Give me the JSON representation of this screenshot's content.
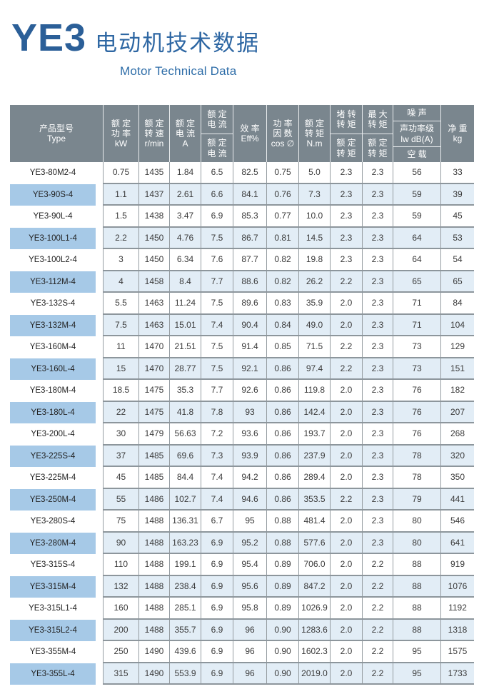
{
  "page": {
    "title_model": "YE3",
    "title_zh": "电动机技术数据",
    "subtitle_en": "Motor Technical Data"
  },
  "colors": {
    "title_blue": "#2b5f98",
    "header_bg": "#7a868e",
    "highlight_row_bg": "#e2edf6",
    "highlight_type_cell_bg": "#a6c9e7",
    "row_border": "#8d969c"
  },
  "table": {
    "header": {
      "type": "产品型号\nType",
      "rated_power": "额 定\n功 率\nkW",
      "rated_speed": "额 定\n转 速\nr/min",
      "rated_current": "额 定\n电 流\nA",
      "current_ratio_top": "额 定\n电 流",
      "current_ratio_bottom": "额 定\n电 流",
      "efficiency": "效 率\nEff%",
      "power_factor": "功 率\n因 数\ncos ∅",
      "rated_torque": "额 定\n转 矩\nN.m",
      "locked_torque_top": "堵 转\n转 矩",
      "locked_torque_bottom": "额 定\n转 矩",
      "max_torque_top": "最 大\n转 矩",
      "max_torque_bottom": "额 定\n转 矩",
      "noise_top": "噪 声",
      "noise_mid": "声功率级\nlw dB(A)",
      "noise_bottom": "空 载",
      "net_weight": "净 重\nkg"
    },
    "value_keys": [
      "rated-power-kw",
      "rated-speed-rmin",
      "rated-current-a",
      "current-ratio",
      "efficiency",
      "power-factor",
      "rated-torque-nm",
      "locked-torque-ratio",
      "max-torque-ratio",
      "noise-db",
      "net-weight-kg"
    ],
    "rows": [
      {
        "type": "YE3-80M2-4",
        "values": [
          "0.75",
          "1435",
          "1.84",
          "6.5",
          "82.5",
          "0.75",
          "5.0",
          "2.3",
          "2.3",
          "56",
          "33"
        ]
      },
      {
        "type": "YE3-90S-4",
        "values": [
          "1.1",
          "1437",
          "2.61",
          "6.6",
          "84.1",
          "0.76",
          "7.3",
          "2.3",
          "2.3",
          "59",
          "39"
        ]
      },
      {
        "type": "YE3-90L-4",
        "values": [
          "1.5",
          "1438",
          "3.47",
          "6.9",
          "85.3",
          "0.77",
          "10.0",
          "2.3",
          "2.3",
          "59",
          "45"
        ]
      },
      {
        "type": "YE3-100L1-4",
        "values": [
          "2.2",
          "1450",
          "4.76",
          "7.5",
          "86.7",
          "0.81",
          "14.5",
          "2.3",
          "2.3",
          "64",
          "53"
        ]
      },
      {
        "type": "YE3-100L2-4",
        "values": [
          "3",
          "1450",
          "6.34",
          "7.6",
          "87.7",
          "0.82",
          "19.8",
          "2.3",
          "2.3",
          "64",
          "54"
        ]
      },
      {
        "type": "YE3-112M-4",
        "values": [
          "4",
          "1458",
          "8.4",
          "7.7",
          "88.6",
          "0.82",
          "26.2",
          "2.2",
          "2.3",
          "65",
          "65"
        ]
      },
      {
        "type": "YE3-132S-4",
        "values": [
          "5.5",
          "1463",
          "11.24",
          "7.5",
          "89.6",
          "0.83",
          "35.9",
          "2.0",
          "2.3",
          "71",
          "84"
        ]
      },
      {
        "type": "YE3-132M-4",
        "values": [
          "7.5",
          "1463",
          "15.01",
          "7.4",
          "90.4",
          "0.84",
          "49.0",
          "2.0",
          "2.3",
          "71",
          "104"
        ]
      },
      {
        "type": "YE3-160M-4",
        "values": [
          "11",
          "1470",
          "21.51",
          "7.5",
          "91.4",
          "0.85",
          "71.5",
          "2.2",
          "2.3",
          "73",
          "129"
        ]
      },
      {
        "type": "YE3-160L-4",
        "values": [
          "15",
          "1470",
          "28.77",
          "7.5",
          "92.1",
          "0.86",
          "97.4",
          "2.2",
          "2.3",
          "73",
          "151"
        ]
      },
      {
        "type": "YE3-180M-4",
        "values": [
          "18.5",
          "1475",
          "35.3",
          "7.7",
          "92.6",
          "0.86",
          "119.8",
          "2.0",
          "2.3",
          "76",
          "182"
        ]
      },
      {
        "type": "YE3-180L-4",
        "values": [
          "22",
          "1475",
          "41.8",
          "7.8",
          "93",
          "0.86",
          "142.4",
          "2.0",
          "2.3",
          "76",
          "207"
        ]
      },
      {
        "type": "YE3-200L-4",
        "values": [
          "30",
          "1479",
          "56.63",
          "7.2",
          "93.6",
          "0.86",
          "193.7",
          "2.0",
          "2.3",
          "76",
          "268"
        ]
      },
      {
        "type": "YE3-225S-4",
        "values": [
          "37",
          "1485",
          "69.6",
          "7.3",
          "93.9",
          "0.86",
          "237.9",
          "2.0",
          "2.3",
          "78",
          "320"
        ]
      },
      {
        "type": "YE3-225M-4",
        "values": [
          "45",
          "1485",
          "84.4",
          "7.4",
          "94.2",
          "0.86",
          "289.4",
          "2.0",
          "2.3",
          "78",
          "350"
        ]
      },
      {
        "type": "YE3-250M-4",
        "values": [
          "55",
          "1486",
          "102.7",
          "7.4",
          "94.6",
          "0.86",
          "353.5",
          "2.2",
          "2.3",
          "79",
          "441"
        ]
      },
      {
        "type": "YE3-280S-4",
        "values": [
          "75",
          "1488",
          "136.31",
          "6.7",
          "95",
          "0.88",
          "481.4",
          "2.0",
          "2.3",
          "80",
          "546"
        ]
      },
      {
        "type": "YE3-280M-4",
        "values": [
          "90",
          "1488",
          "163.23",
          "6.9",
          "95.2",
          "0.88",
          "577.6",
          "2.0",
          "2.3",
          "80",
          "641"
        ]
      },
      {
        "type": "YE3-315S-4",
        "values": [
          "110",
          "1488",
          "199.1",
          "6.9",
          "95.4",
          "0.89",
          "706.0",
          "2.0",
          "2.2",
          "88",
          "919"
        ]
      },
      {
        "type": "YE3-315M-4",
        "values": [
          "132",
          "1488",
          "238.4",
          "6.9",
          "95.6",
          "0.89",
          "847.2",
          "2.0",
          "2.2",
          "88",
          "1076"
        ]
      },
      {
        "type": "YE3-315L1-4",
        "values": [
          "160",
          "1488",
          "285.1",
          "6.9",
          "95.8",
          "0.89",
          "1026.9",
          "2.0",
          "2.2",
          "88",
          "1192"
        ]
      },
      {
        "type": "YE3-315L2-4",
        "values": [
          "200",
          "1488",
          "355.7",
          "6.9",
          "96",
          "0.90",
          "1283.6",
          "2.0",
          "2.2",
          "88",
          "1318"
        ]
      },
      {
        "type": "YE3-355M-4",
        "values": [
          "250",
          "1490",
          "439.6",
          "6.9",
          "96",
          "0.90",
          "1602.3",
          "2.0",
          "2.2",
          "95",
          "1575"
        ]
      },
      {
        "type": "YE3-355L-4",
        "values": [
          "315",
          "1490",
          "553.9",
          "6.9",
          "96",
          "0.90",
          "2019.0",
          "2.0",
          "2.2",
          "95",
          "1733"
        ]
      }
    ]
  }
}
